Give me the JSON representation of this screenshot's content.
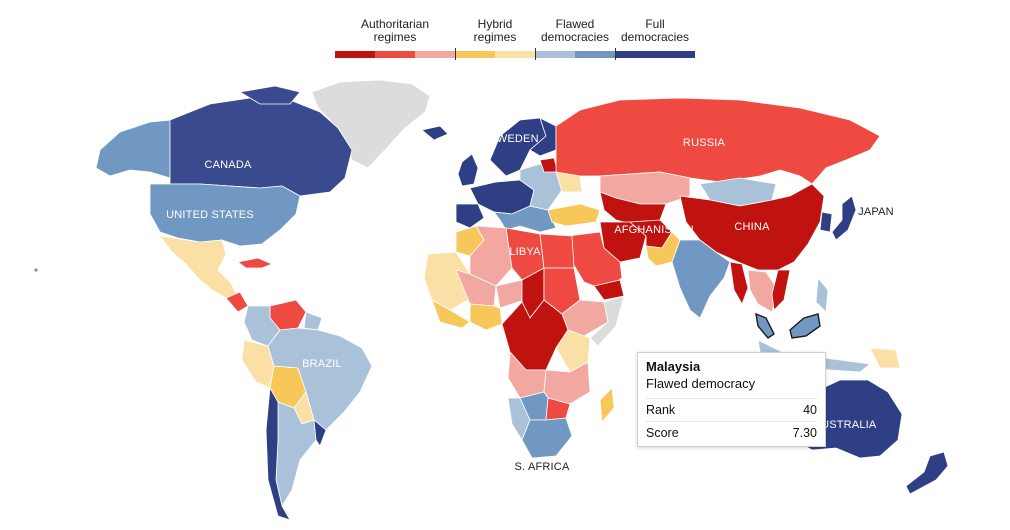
{
  "legend": {
    "categories": [
      {
        "label": "Authoritarian\nregimes",
        "colors": [
          "#c0120f",
          "#ee4a41",
          "#f3a7a1"
        ]
      },
      {
        "label": "Hybrid\nregimes",
        "colors": [
          "#f7c75a",
          "#fbe0a6"
        ]
      },
      {
        "label": "Flawed\ndemocracies",
        "colors": [
          "#a9c2da",
          "#7098c2"
        ]
      },
      {
        "label": "Full\ndemocracies",
        "colors": [
          "#2f3f86"
        ]
      }
    ]
  },
  "map_labels": {
    "canada": "CANADA",
    "united_states": "UNITED STATES",
    "brazil": "BRAZIL",
    "sweden": "SWEDEN",
    "russia": "RUSSIA",
    "libya": "LIBYA",
    "afghanistan": "AFGHANISTAN",
    "china": "CHINA",
    "japan": "JAPAN",
    "south_africa": "S. AFRICA",
    "australia": "AUSTRALIA"
  },
  "tooltip": {
    "country": "Malaysia",
    "category": "Flawed democracy",
    "rank_label": "Rank",
    "rank_value": "40",
    "score_label": "Score",
    "score_value": "7.30"
  },
  "colors": {
    "authoritarian_dark": "#c0120f",
    "authoritarian_mid": "#ee4a41",
    "authoritarian_light": "#f3a7a1",
    "hybrid_dark": "#f7c75a",
    "hybrid_light": "#fbe0a6",
    "flawed_light": "#a9c2da",
    "flawed_dark": "#7098c2",
    "full": "#2f3f86",
    "no_data": "#dcdcdc"
  }
}
